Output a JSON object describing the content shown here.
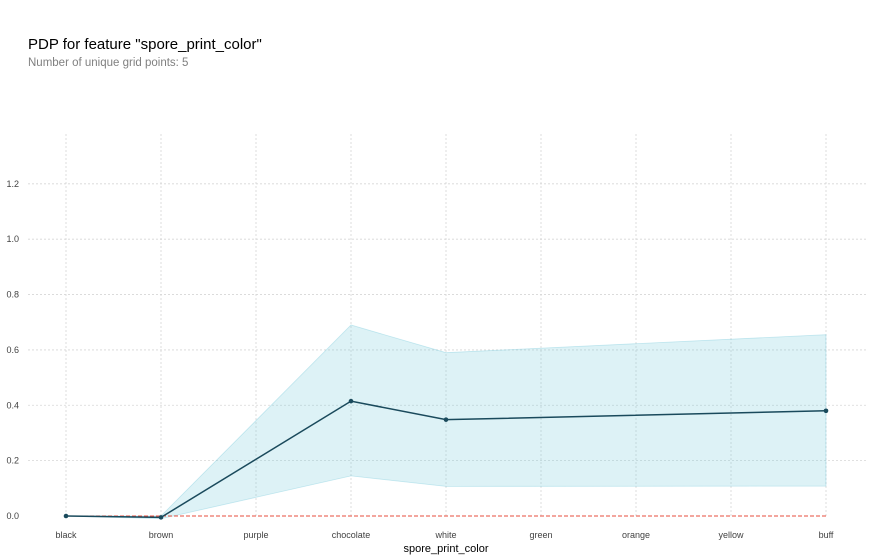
{
  "header": {
    "title": "PDP for feature \"spore_print_color\"",
    "subtitle": "Number of unique grid points: 5"
  },
  "chart_data": {
    "type": "line",
    "title": "PDP for feature \"spore_print_color\"",
    "subtitle": "Number of unique grid points: 5",
    "xlabel": "spore_print_color",
    "ylabel": "",
    "categories": [
      "black",
      "brown",
      "purple",
      "chocolate",
      "white",
      "green",
      "orange",
      "yellow",
      "buff"
    ],
    "y_ticks": [
      "0.0",
      "0.2",
      "0.4",
      "0.6",
      "0.8",
      "1.0",
      "1.2"
    ],
    "ylim": [
      0,
      1.38
    ],
    "grid": true,
    "series": [
      {
        "values": [
          0.0,
          -0.005,
          null,
          0.415,
          0.348,
          null,
          null,
          null,
          0.38
        ],
        "color": "#1a4a5c"
      }
    ],
    "band": {
      "upper": [
        0.0,
        0.0,
        null,
        0.69,
        0.59,
        null,
        null,
        null,
        0.655
      ],
      "lower": [
        0.0,
        -0.01,
        null,
        0.145,
        0.107,
        null,
        null,
        null,
        0.108
      ],
      "color": "#66c2d7"
    },
    "reference_line": {
      "y": 0,
      "color": "#e74c3c",
      "style": "dashed"
    }
  }
}
